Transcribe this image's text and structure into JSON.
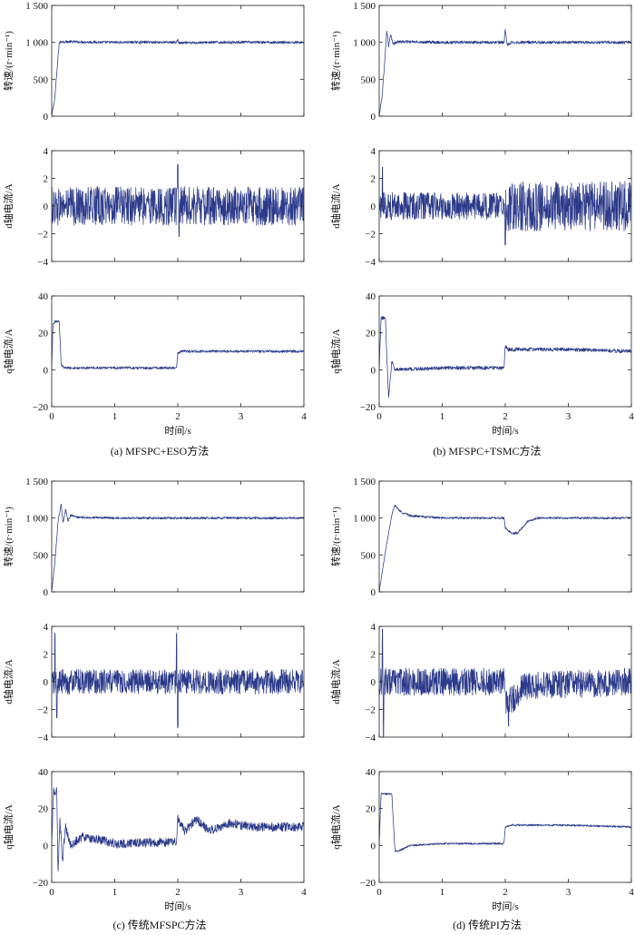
{
  "chart_data": [
    {
      "type": "line",
      "panel": "a",
      "caption": "(a) MFSPC+ESO方法",
      "xlabel": "时间/s",
      "xlim": [
        0,
        4
      ],
      "xticks": [
        0,
        1,
        2,
        3,
        4
      ],
      "subplots": [
        {
          "ylabel": "转速/(r·min⁻¹)",
          "ylim": [
            0,
            1500
          ],
          "yticks": [
            0,
            500,
            1000,
            1500
          ],
          "ytick_labels": [
            "0",
            "500",
            "1 000",
            "1 500"
          ],
          "series": [
            {
              "x": [
                0,
                0.05,
                0.1,
                0.12,
                0.15,
                0.5,
                1.0,
                1.5,
                1.98,
                2.0,
                2.02,
                2.5,
                3.0,
                3.5,
                4.0
              ],
              "y": [
                0,
                250,
                800,
                990,
                1010,
                1005,
                1000,
                1003,
                1000,
                1035,
                990,
                1000,
                1002,
                1000,
                1000
              ],
              "noise": 18
            }
          ]
        },
        {
          "ylabel": "d轴电流/A",
          "ylim": [
            -4,
            4
          ],
          "yticks": [
            -4,
            -2,
            0,
            2,
            4
          ],
          "ytick_labels": [
            "−4",
            "−2",
            "0",
            "2",
            "4"
          ],
          "series": [
            {
              "x": [
                0,
                4
              ],
              "y": [
                0,
                0
              ],
              "noise": 1.4,
              "spikes": [
                {
                  "x": 2.0,
                  "y": 3.0
                },
                {
                  "x": 2.02,
                  "y": -2.2
                }
              ]
            }
          ]
        },
        {
          "ylabel": "q轴电流/A",
          "ylim": [
            -20,
            40
          ],
          "yticks": [
            -20,
            0,
            20,
            40
          ],
          "ytick_labels": [
            "−20",
            "0",
            "20",
            "40"
          ],
          "series": [
            {
              "x": [
                0,
                0.02,
                0.05,
                0.12,
                0.15,
                0.2,
                1.0,
                1.98,
                2.0,
                2.05,
                3.0,
                4.0
              ],
              "y": [
                0,
                24,
                26,
                26,
                3,
                1,
                1,
                1,
                9,
                10,
                10,
                10
              ],
              "noise": 0.7
            }
          ]
        }
      ]
    },
    {
      "type": "line",
      "panel": "b",
      "caption": "(b) MFSPC+TSMC方法",
      "xlabel": "时间/s",
      "xlim": [
        0,
        4
      ],
      "xticks": [
        0,
        1,
        2,
        3,
        4
      ],
      "subplots": [
        {
          "ylabel": "转速/(r·min⁻¹)",
          "ylim": [
            0,
            1500
          ],
          "yticks": [
            0,
            500,
            1000,
            1500
          ],
          "ytick_labels": [
            "0",
            "500",
            "1 000",
            "1 500"
          ],
          "series": [
            {
              "x": [
                0,
                0.05,
                0.1,
                0.12,
                0.15,
                0.18,
                0.22,
                0.3,
                1.0,
                1.98,
                2.0,
                2.03,
                2.1,
                3.0,
                4.0
              ],
              "y": [
                0,
                300,
                900,
                1170,
                950,
                1100,
                980,
                1010,
                1000,
                1000,
                1180,
                960,
                1000,
                1000,
                1000
              ],
              "noise": 20
            }
          ]
        },
        {
          "ylabel": "d轴电流/A",
          "ylim": [
            -4,
            4
          ],
          "yticks": [
            -4,
            -2,
            0,
            2,
            4
          ],
          "ytick_labels": [
            "−4",
            "−2",
            "0",
            "2",
            "4"
          ],
          "series": [
            {
              "x": [
                0,
                4
              ],
              "y": [
                0,
                0
              ],
              "noise": 1.0,
              "noise_after_2s": 1.8,
              "spikes": [
                {
                  "x": 0.05,
                  "y": 2.8
                },
                {
                  "x": 2.0,
                  "y": -2.8
                }
              ]
            }
          ]
        },
        {
          "ylabel": "q轴电流/A",
          "ylim": [
            -20,
            40
          ],
          "yticks": [
            -20,
            0,
            20,
            40
          ],
          "ytick_labels": [
            "−20",
            "0",
            "20",
            "40"
          ],
          "series": [
            {
              "x": [
                0,
                0.03,
                0.1,
                0.12,
                0.15,
                0.2,
                0.25,
                1.0,
                1.98,
                2.0,
                2.05,
                3.0,
                4.0
              ],
              "y": [
                0,
                28,
                28,
                8,
                -16,
                5,
                0,
                1,
                1,
                13,
                11,
                11,
                10
              ],
              "noise": 1.0
            }
          ]
        }
      ]
    },
    {
      "type": "line",
      "panel": "c",
      "caption": "(c) 传统MFSPC方法",
      "xlabel": "时间/s",
      "xlim": [
        0,
        4
      ],
      "xticks": [
        0,
        1,
        2,
        3,
        4
      ],
      "subplots": [
        {
          "ylabel": "转速/(r·min⁻¹)",
          "ylim": [
            0,
            1500
          ],
          "yticks": [
            0,
            500,
            1000,
            1500
          ],
          "ytick_labels": [
            "0",
            "500",
            "1 000",
            "1 500"
          ],
          "series": [
            {
              "x": [
                0,
                0.05,
                0.1,
                0.15,
                0.18,
                0.22,
                0.26,
                0.3,
                0.4,
                1.0,
                2.0,
                3.0,
                4.0
              ],
              "y": [
                0,
                400,
                950,
                1190,
                930,
                1120,
                960,
                1040,
                1010,
                1000,
                1000,
                1000,
                1000
              ],
              "noise": 15
            }
          ]
        },
        {
          "ylabel": "d轴电流/A",
          "ylim": [
            -4,
            4
          ],
          "yticks": [
            -4,
            -2,
            0,
            2,
            4
          ],
          "ytick_labels": [
            "−4",
            "−2",
            "0",
            "2",
            "4"
          ],
          "series": [
            {
              "x": [
                0,
                4
              ],
              "y": [
                0,
                0
              ],
              "noise": 0.9,
              "spikes": [
                {
                  "x": 0.05,
                  "y": 3.5
                },
                {
                  "x": 0.08,
                  "y": -2.6
                },
                {
                  "x": 1.98,
                  "y": 3.5
                },
                {
                  "x": 2.0,
                  "y": -3.3
                }
              ]
            }
          ]
        },
        {
          "ylabel": "q轴电流/A",
          "ylim": [
            -20,
            40
          ],
          "yticks": [
            -20,
            0,
            20,
            40
          ],
          "ytick_labels": [
            "−20",
            "0",
            "20",
            "40"
          ],
          "series": [
            {
              "x": [
                0,
                0.03,
                0.08,
                0.1,
                0.13,
                0.17,
                0.22,
                0.3,
                0.5,
                1.0,
                1.98,
                2.0,
                2.1,
                2.3,
                2.5,
                2.8,
                3.2,
                4.0
              ],
              "y": [
                0,
                30,
                29,
                -18,
                15,
                -8,
                10,
                0,
                5,
                1,
                2,
                15,
                8,
                14,
                8,
                12,
                10,
                10
              ],
              "noise": 2.5
            }
          ]
        }
      ]
    },
    {
      "type": "line",
      "panel": "d",
      "caption": "(d) 传统PI方法",
      "xlabel": "时间/s",
      "xlim": [
        0,
        4
      ],
      "xticks": [
        0,
        1,
        2,
        3,
        4
      ],
      "subplots": [
        {
          "ylabel": "转速/(r·min⁻¹)",
          "ylim": [
            0,
            1500
          ],
          "yticks": [
            0,
            500,
            1000,
            1500
          ],
          "ytick_labels": [
            "0",
            "500",
            "1 000",
            "1 500"
          ],
          "series": [
            {
              "x": [
                0,
                0.1,
                0.2,
                0.25,
                0.35,
                0.5,
                1.0,
                1.98,
                2.0,
                2.1,
                2.2,
                2.35,
                2.5,
                3.0,
                4.0
              ],
              "y": [
                0,
                550,
                1050,
                1170,
                1080,
                1030,
                1000,
                1000,
                870,
                790,
                800,
                950,
                1000,
                1000,
                1000
              ],
              "noise": 15
            }
          ]
        },
        {
          "ylabel": "d轴电流/A",
          "ylim": [
            -4,
            4
          ],
          "yticks": [
            -4,
            -2,
            0,
            2,
            4
          ],
          "ytick_labels": [
            "−4",
            "−2",
            "0",
            "2",
            "4"
          ],
          "series": [
            {
              "x": [
                0,
                1.98,
                2.0,
                2.15,
                2.3,
                4.0
              ],
              "y": [
                0,
                0,
                -1.5,
                -1.2,
                -0.3,
                0
              ],
              "noise": 1.0,
              "spikes": [
                {
                  "x": 0.05,
                  "y": 3.8
                },
                {
                  "x": 0.07,
                  "y": -4.0
                },
                {
                  "x": 2.05,
                  "y": -3.2
                }
              ]
            }
          ]
        },
        {
          "ylabel": "q轴电流/A",
          "ylim": [
            -20,
            40
          ],
          "yticks": [
            -20,
            0,
            20,
            40
          ],
          "ytick_labels": [
            "−20",
            "0",
            "20",
            "40"
          ],
          "series": [
            {
              "x": [
                0,
                0.03,
                0.2,
                0.25,
                0.3,
                0.5,
                1.0,
                1.98,
                2.0,
                2.1,
                3.0,
                4.0
              ],
              "y": [
                0,
                28,
                28,
                -3,
                -3,
                0,
                1,
                1,
                10,
                11,
                11,
                10
              ],
              "noise": 0.5
            }
          ]
        }
      ]
    }
  ]
}
